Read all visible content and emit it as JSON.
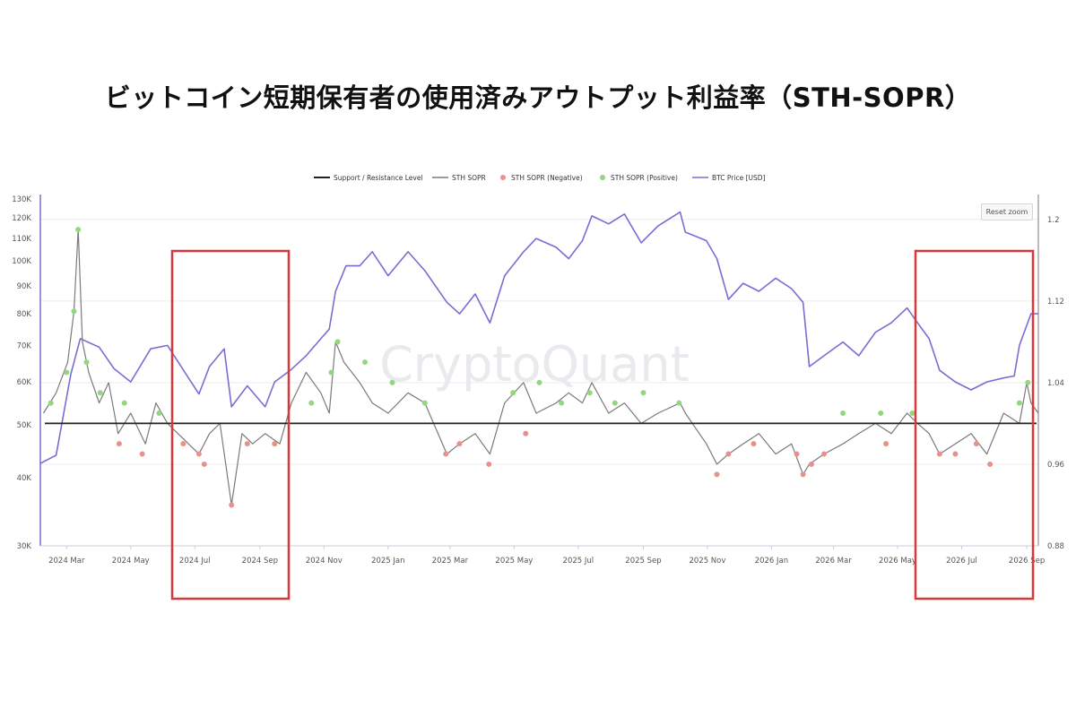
{
  "title": "ビットコイン短期保有者の使用済みアウトプット利益率（STH-SOPR）",
  "watermark": "CryptoQuant",
  "reset_zoom_label": "Reset zoom",
  "colors": {
    "support_line": "#222222",
    "sopr_line": "#7a7a7a",
    "negative": "#e8908a",
    "positive": "#93d67f",
    "price": "#7b6cd3",
    "highlight_box": "#d9383a"
  },
  "chart_data": {
    "type": "line",
    "legend": [
      {
        "name": "Support / Resistance Level",
        "marker": "line",
        "color": "#222222"
      },
      {
        "name": "STH SOPR",
        "marker": "line",
        "color": "#7a7a7a"
      },
      {
        "name": "STH SOPR (Negative)",
        "marker": "dot",
        "color": "#e8908a"
      },
      {
        "name": "STH SOPR (Positive)",
        "marker": "dot",
        "color": "#93d67f"
      },
      {
        "name": "BTC Price [USD]",
        "marker": "line",
        "color": "#7b6cd3"
      }
    ],
    "x_ticks": [
      "2024 Mar",
      "2024 May",
      "2024 Jul",
      "2024 Sep",
      "2024 Nov",
      "2025 Jan",
      "2025 Mar",
      "2025 May",
      "2025 Jul",
      "2025 Sep",
      "2025 Nov",
      "2026 Jan",
      "2026 Mar",
      "2026 May",
      "2026 Jul",
      "2026 Sep"
    ],
    "x_range": [
      "2024-02-05",
      "2026-09-12"
    ],
    "left_axis": {
      "name": "BTC Price [USD]",
      "scale": "log",
      "range": [
        30000,
        130000
      ],
      "ticks": [
        "30K",
        "40K",
        "50K",
        "60K",
        "70K",
        "80K",
        "90K",
        "100K",
        "110K",
        "120K",
        "130K"
      ]
    },
    "right_axis": {
      "name": "STH SOPR",
      "scale": "linear",
      "range": [
        0.88,
        1.22
      ],
      "ticks": [
        "0.88",
        "0.96",
        "1.04",
        "1.12",
        "1.2"
      ]
    },
    "support_level": 1.0,
    "btc_price": {
      "name": "BTC Price [USD]",
      "x": [
        "2024-02-05",
        "2024-02-20",
        "2024-03-05",
        "2024-03-14",
        "2024-04-01",
        "2024-04-15",
        "2024-05-01",
        "2024-05-20",
        "2024-06-05",
        "2024-06-25",
        "2024-07-05",
        "2024-07-15",
        "2024-07-29",
        "2024-08-05",
        "2024-08-20",
        "2024-09-06",
        "2024-09-15",
        "2024-09-30",
        "2024-10-15",
        "2024-10-29",
        "2024-11-06",
        "2024-11-12",
        "2024-11-22",
        "2024-12-05",
        "2024-12-17",
        "2025-01-01",
        "2025-01-20",
        "2025-02-05",
        "2025-02-26",
        "2025-03-10",
        "2025-03-25",
        "2025-04-08",
        "2025-04-22",
        "2025-05-10",
        "2025-05-22",
        "2025-06-10",
        "2025-06-22",
        "2025-07-05",
        "2025-07-14",
        "2025-07-30",
        "2025-08-14",
        "2025-08-30",
        "2025-09-15",
        "2025-10-06",
        "2025-10-11",
        "2025-10-31",
        "2025-11-10",
        "2025-11-21",
        "2025-12-05",
        "2025-12-20",
        "2026-01-05",
        "2026-01-20",
        "2026-01-31",
        "2026-02-06",
        "2026-02-20",
        "2026-03-10",
        "2026-03-25",
        "2026-04-10",
        "2026-04-25",
        "2026-05-10",
        "2026-05-20",
        "2026-05-31",
        "2026-06-10",
        "2026-06-25",
        "2026-07-10",
        "2026-07-25",
        "2026-08-10",
        "2026-08-20",
        "2026-08-25",
        "2026-09-05",
        "2026-09-12"
      ],
      "values": [
        42500,
        44000,
        62000,
        72000,
        69500,
        63500,
        60000,
        69000,
        70000,
        61000,
        57000,
        64000,
        69000,
        54000,
        59000,
        54000,
        60000,
        63000,
        67000,
        72000,
        75000,
        88000,
        98000,
        98000,
        104000,
        94000,
        104000,
        96000,
        84000,
        80000,
        87000,
        77000,
        94000,
        104000,
        110000,
        106000,
        101000,
        109000,
        121000,
        117000,
        122000,
        108000,
        116000,
        123000,
        113000,
        109000,
        101000,
        85000,
        91000,
        88000,
        93000,
        89000,
        84000,
        64000,
        67000,
        71000,
        67000,
        74000,
        77000,
        82000,
        77000,
        72000,
        63000,
        60000,
        58000,
        60000,
        61000,
        61500,
        70000,
        80000,
        80000
      ]
    },
    "sth_sopr": {
      "name": "STH SOPR",
      "x": [
        "2024-02-08",
        "2024-02-20",
        "2024-03-02",
        "2024-03-08",
        "2024-03-12",
        "2024-03-16",
        "2024-03-22",
        "2024-04-01",
        "2024-04-10",
        "2024-04-19",
        "2024-05-01",
        "2024-05-15",
        "2024-05-25",
        "2024-06-05",
        "2024-06-15",
        "2024-06-25",
        "2024-07-05",
        "2024-07-15",
        "2024-07-25",
        "2024-08-05",
        "2024-08-15",
        "2024-08-25",
        "2024-09-06",
        "2024-09-20",
        "2024-10-01",
        "2024-10-15",
        "2024-10-29",
        "2024-11-06",
        "2024-11-12",
        "2024-11-20",
        "2024-12-05",
        "2024-12-17",
        "2025-01-01",
        "2025-01-20",
        "2025-02-05",
        "2025-02-26",
        "2025-03-10",
        "2025-03-25",
        "2025-04-08",
        "2025-04-22",
        "2025-05-10",
        "2025-05-22",
        "2025-06-10",
        "2025-06-22",
        "2025-07-05",
        "2025-07-14",
        "2025-07-30",
        "2025-08-14",
        "2025-08-30",
        "2025-09-15",
        "2025-10-06",
        "2025-10-11",
        "2025-10-31",
        "2025-11-10",
        "2025-11-21",
        "2025-12-05",
        "2025-12-20",
        "2026-01-05",
        "2026-01-20",
        "2026-01-31",
        "2026-02-06",
        "2026-02-20",
        "2026-03-10",
        "2026-03-25",
        "2026-04-10",
        "2026-04-25",
        "2026-05-10",
        "2026-05-20",
        "2026-05-31",
        "2026-06-10",
        "2026-06-25",
        "2026-07-10",
        "2026-07-25",
        "2026-08-10",
        "2026-08-25",
        "2026-09-01",
        "2026-09-05",
        "2026-09-12"
      ],
      "values": [
        1.01,
        1.03,
        1.06,
        1.11,
        1.19,
        1.08,
        1.05,
        1.02,
        1.04,
        0.99,
        1.01,
        0.98,
        1.02,
        1.0,
        0.99,
        0.98,
        0.97,
        0.99,
        1.0,
        0.92,
        0.99,
        0.98,
        0.99,
        0.98,
        1.02,
        1.05,
        1.03,
        1.01,
        1.08,
        1.06,
        1.04,
        1.02,
        1.01,
        1.03,
        1.02,
        0.97,
        0.98,
        0.99,
        0.97,
        1.02,
        1.04,
        1.01,
        1.02,
        1.03,
        1.02,
        1.04,
        1.01,
        1.02,
        1.0,
        1.01,
        1.02,
        1.01,
        0.98,
        0.96,
        0.97,
        0.98,
        0.99,
        0.97,
        0.98,
        0.95,
        0.96,
        0.97,
        0.98,
        0.99,
        1.0,
        0.99,
        1.01,
        1.0,
        0.99,
        0.97,
        0.98,
        0.99,
        0.97,
        1.01,
        1.0,
        1.04,
        1.02,
        1.01
      ]
    },
    "sth_sopr_positive": {
      "name": "STH SOPR (Positive)",
      "x": [
        "2024-02-15",
        "2024-03-01",
        "2024-03-08",
        "2024-03-12",
        "2024-03-20",
        "2024-04-02",
        "2024-04-25",
        "2024-05-28",
        "2024-10-20",
        "2024-11-08",
        "2024-11-14",
        "2024-12-10",
        "2025-01-05",
        "2025-02-05",
        "2025-04-30",
        "2025-05-25",
        "2025-06-15",
        "2025-07-12",
        "2025-08-05",
        "2025-09-01",
        "2025-10-05",
        "2026-03-10",
        "2026-04-15",
        "2026-05-15",
        "2026-08-25",
        "2026-09-02"
      ],
      "values": [
        1.02,
        1.05,
        1.11,
        1.19,
        1.06,
        1.03,
        1.02,
        1.01,
        1.02,
        1.05,
        1.08,
        1.06,
        1.04,
        1.02,
        1.03,
        1.04,
        1.02,
        1.03,
        1.02,
        1.03,
        1.02,
        1.01,
        1.01,
        1.01,
        1.02,
        1.04
      ]
    },
    "sth_sopr_negative": {
      "name": "STH SOPR (Negative)",
      "x": [
        "2024-04-20",
        "2024-05-12",
        "2024-06-20",
        "2024-07-05",
        "2024-07-10",
        "2024-08-05",
        "2024-08-20",
        "2024-09-15",
        "2025-02-25",
        "2025-03-10",
        "2025-04-07",
        "2025-05-12",
        "2025-11-10",
        "2025-11-21",
        "2025-12-15",
        "2026-01-25",
        "2026-01-31",
        "2026-02-08",
        "2026-02-20",
        "2026-04-20",
        "2026-06-10",
        "2026-06-25",
        "2026-07-15",
        "2026-07-28"
      ],
      "values": [
        0.98,
        0.97,
        0.98,
        0.97,
        0.96,
        0.92,
        0.98,
        0.98,
        0.97,
        0.98,
        0.96,
        0.99,
        0.95,
        0.97,
        0.98,
        0.97,
        0.95,
        0.96,
        0.97,
        0.98,
        0.97,
        0.97,
        0.98,
        0.96
      ]
    }
  }
}
